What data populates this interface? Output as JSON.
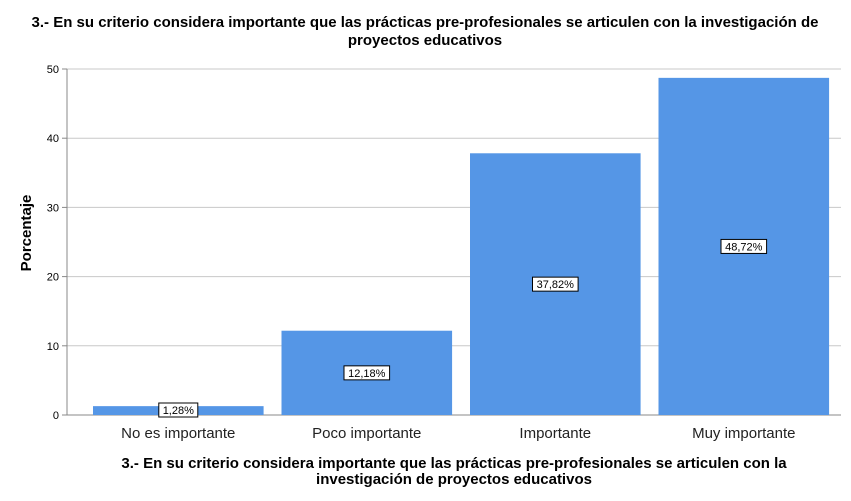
{
  "chart_data": {
    "type": "bar",
    "title_lines": [
      "3.- En su criterio considera importante que las prácticas pre-profesionales se articulen con la investigación de",
      "proyectos educativos"
    ],
    "xlabel_lines": [
      "3.- En su criterio considera importante que las prácticas pre-profesionales se articulen con la",
      "investigación de proyectos educativos"
    ],
    "ylabel": "Porcentaje",
    "categories": [
      "No es importante",
      "Poco importante",
      "Importante",
      "Muy importante"
    ],
    "values": [
      1.28,
      12.18,
      37.82,
      48.72
    ],
    "data_labels": [
      "1,28%",
      "12,18%",
      "37,82%",
      "48,72%"
    ],
    "yticks": [
      0,
      10,
      20,
      30,
      40,
      50
    ],
    "ylim": [
      0,
      50
    ],
    "grid": true,
    "bar_color": "#5596e6",
    "grid_color": "#c8c8c8"
  }
}
